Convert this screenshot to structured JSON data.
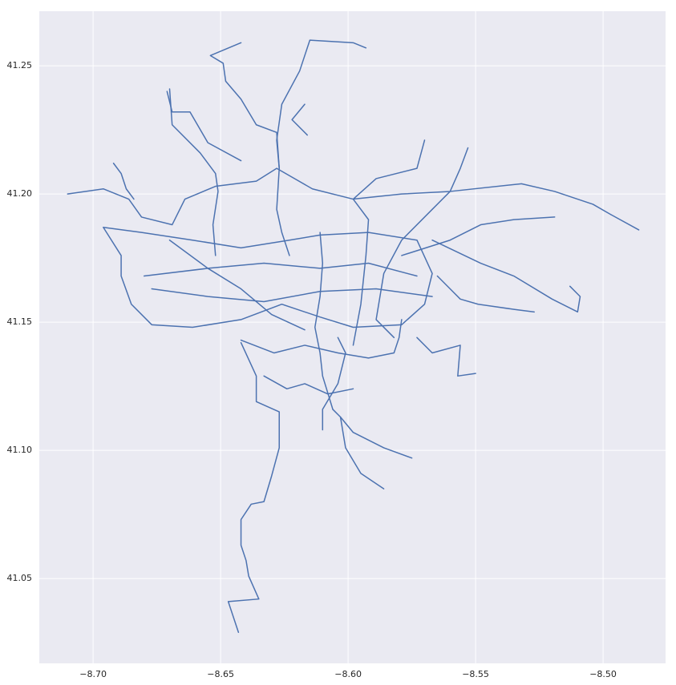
{
  "chart_data": {
    "type": "line",
    "color": "#4c72b0",
    "grid": true,
    "xlim": [
      -8.7211,
      -8.4755
    ],
    "ylim": [
      41.0169,
      41.2713
    ],
    "xticks": [
      {
        "value": -8.7,
        "label": "−8.70"
      },
      {
        "value": -8.65,
        "label": "−8.65"
      },
      {
        "value": -8.6,
        "label": "−8.60"
      },
      {
        "value": -8.55,
        "label": "−8.55"
      },
      {
        "value": -8.5,
        "label": "−8.50"
      }
    ],
    "yticks": [
      {
        "value": 41.05,
        "label": "41.05"
      },
      {
        "value": 41.1,
        "label": "41.10"
      },
      {
        "value": 41.15,
        "label": "41.15"
      },
      {
        "value": 41.2,
        "label": "41.20"
      },
      {
        "value": 41.25,
        "label": "41.25"
      }
    ],
    "series": [
      {
        "x": [
          -8.643,
          -8.647,
          -8.635,
          -8.639,
          -8.64,
          -8.642,
          -8.642,
          -8.638,
          -8.633,
          -8.63,
          -8.627,
          -8.627,
          -8.636,
          -8.636,
          -8.642
        ],
        "values": [
          41.029,
          41.041,
          41.042,
          41.051,
          41.057,
          41.063,
          41.073,
          41.079,
          41.08,
          41.09,
          41.101,
          41.115,
          41.119,
          41.129,
          41.142
        ]
      },
      {
        "x": [
          -8.642,
          -8.654,
          -8.649,
          -8.648,
          -8.642,
          -8.636,
          -8.628,
          -8.627,
          -8.628,
          -8.626,
          -8.623
        ],
        "values": [
          41.259,
          41.254,
          41.251,
          41.244,
          41.237,
          41.227,
          41.224,
          41.21,
          41.194,
          41.185,
          41.176
        ]
      },
      {
        "x": [
          -8.593,
          -8.598,
          -8.615,
          -8.619,
          -8.626,
          -8.628,
          -8.627
        ],
        "values": [
          41.257,
          41.259,
          41.26,
          41.248,
          41.235,
          41.221,
          41.21
        ]
      },
      {
        "x": [
          -8.67,
          -8.669,
          -8.658,
          -8.652,
          -8.651,
          -8.653,
          -8.652
        ],
        "values": [
          41.241,
          41.227,
          41.216,
          41.208,
          41.201,
          41.188,
          41.176
        ]
      },
      {
        "x": [
          -8.71,
          -8.696,
          -8.686,
          -8.681,
          -8.669,
          -8.664,
          -8.652,
          -8.636,
          -8.628,
          -8.614,
          -8.598,
          -8.579,
          -8.56,
          -8.532,
          -8.519,
          -8.51,
          -8.504,
          -8.497,
          -8.486
        ],
        "values": [
          41.2,
          41.202,
          41.198,
          41.191,
          41.188,
          41.198,
          41.203,
          41.205,
          41.21,
          41.202,
          41.198,
          41.2,
          41.201,
          41.204,
          41.201,
          41.198,
          41.196,
          41.192,
          41.186
        ]
      },
      {
        "x": [
          -8.696,
          -8.689,
          -8.689,
          -8.685,
          -8.677,
          -8.661,
          -8.642,
          -8.626,
          -8.611,
          -8.598,
          -8.579,
          -8.57,
          -8.567,
          -8.573,
          -8.592,
          -8.611,
          -8.623,
          -8.642,
          -8.661,
          -8.681,
          -8.696
        ],
        "values": [
          41.187,
          41.176,
          41.168,
          41.157,
          41.149,
          41.148,
          41.151,
          41.157,
          41.152,
          41.148,
          41.149,
          41.157,
          41.169,
          41.182,
          41.185,
          41.184,
          41.182,
          41.179,
          41.182,
          41.185,
          41.187
        ]
      },
      {
        "x": [
          -8.567,
          -8.548,
          -8.535,
          -8.52,
          -8.51,
          -8.509,
          -8.513
        ],
        "values": [
          41.182,
          41.173,
          41.168,
          41.159,
          41.154,
          41.16,
          41.164
        ]
      },
      {
        "x": [
          -8.579,
          -8.56,
          -8.548,
          -8.535,
          -8.519
        ],
        "values": [
          41.176,
          41.182,
          41.188,
          41.19,
          41.191
        ]
      },
      {
        "x": [
          -8.57,
          -8.573,
          -8.589,
          -8.598,
          -8.592,
          -8.593,
          -8.595,
          -8.598
        ],
        "values": [
          41.221,
          41.21,
          41.206,
          41.198,
          41.19,
          41.176,
          41.157,
          41.141
        ]
      },
      {
        "x": [
          -8.553,
          -8.556,
          -8.56,
          -8.567,
          -8.579,
          -8.586,
          -8.589,
          -8.582
        ],
        "values": [
          41.218,
          41.21,
          41.201,
          41.194,
          41.182,
          41.169,
          41.151,
          41.144
        ]
      },
      {
        "x": [
          -8.61,
          -8.61,
          -8.604,
          -8.601,
          -8.604
        ],
        "values": [
          41.108,
          41.116,
          41.126,
          41.138,
          41.144
        ]
      },
      {
        "x": [
          -8.606,
          -8.603,
          -8.598,
          -8.592,
          -8.586,
          -8.575
        ],
        "values": [
          41.116,
          41.113,
          41.107,
          41.104,
          41.101,
          41.097
        ]
      },
      {
        "x": [
          -8.603,
          -8.601,
          -8.595,
          -8.586
        ],
        "values": [
          41.113,
          41.101,
          41.091,
          41.085
        ]
      },
      {
        "x": [
          -8.642,
          -8.629,
          -8.617,
          -8.604,
          -8.592,
          -8.582,
          -8.58,
          -8.579
        ],
        "values": [
          41.143,
          41.138,
          41.141,
          41.138,
          41.136,
          41.138,
          41.144,
          41.151
        ]
      },
      {
        "x": [
          -8.573,
          -8.567,
          -8.556,
          -8.557,
          -8.55
        ],
        "values": [
          41.144,
          41.138,
          41.141,
          41.129,
          41.13
        ]
      },
      {
        "x": [
          -8.68,
          -8.655,
          -8.633,
          -8.611,
          -8.592,
          -8.573
        ],
        "values": [
          41.168,
          41.171,
          41.173,
          41.171,
          41.173,
          41.168
        ]
      },
      {
        "x": [
          -8.677,
          -8.655,
          -8.633,
          -8.611,
          -8.589,
          -8.567
        ],
        "values": [
          41.163,
          41.16,
          41.158,
          41.162,
          41.163,
          41.16
        ]
      },
      {
        "x": [
          -8.67,
          -8.655,
          -8.642,
          -8.63,
          -8.617
        ],
        "values": [
          41.182,
          41.171,
          41.163,
          41.153,
          41.147
        ]
      },
      {
        "x": [
          -8.611,
          -8.61,
          -8.611,
          -8.613,
          -8.611,
          -8.61,
          -8.606
        ],
        "values": [
          41.185,
          41.173,
          41.16,
          41.148,
          41.138,
          41.129,
          41.116
        ]
      },
      {
        "x": [
          -8.633,
          -8.624,
          -8.617,
          -8.608,
          -8.598
        ],
        "values": [
          41.129,
          41.124,
          41.126,
          41.122,
          41.124
        ]
      },
      {
        "x": [
          -8.671,
          -8.669,
          -8.662,
          -8.655,
          -8.642
        ],
        "values": [
          41.24,
          41.232,
          41.232,
          41.22,
          41.213
        ]
      },
      {
        "x": [
          -8.617,
          -8.622,
          -8.616
        ],
        "values": [
          41.235,
          41.229,
          41.223
        ]
      },
      {
        "x": [
          -8.565,
          -8.56,
          -8.556,
          -8.549,
          -8.535,
          -8.527
        ],
        "values": [
          41.168,
          41.163,
          41.159,
          41.157,
          41.155,
          41.154
        ]
      },
      {
        "x": [
          -8.692,
          -8.689,
          -8.687,
          -8.684
        ],
        "values": [
          41.212,
          41.208,
          41.202,
          41.198
        ]
      }
    ]
  }
}
